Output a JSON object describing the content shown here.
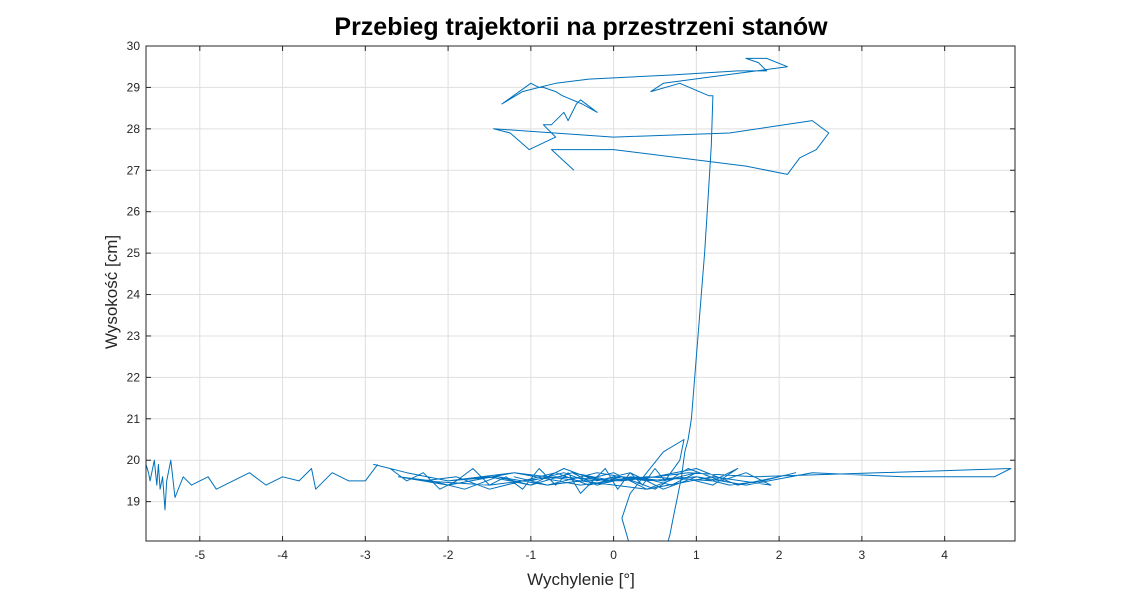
{
  "chart_data": {
    "type": "line",
    "title": "Przebieg trajektorii na przestrzeni stanów",
    "xlabel": "Wychylenie [°]",
    "ylabel": "Wysokość [cm]",
    "xlim": [
      -5.65,
      4.85
    ],
    "ylim": [
      18.05,
      30
    ],
    "grid": true,
    "x_ticks": [
      -5,
      -4,
      -3,
      -2,
      -1,
      0,
      1,
      2,
      3,
      4
    ],
    "x_tick_labels": [
      "-5",
      "-4",
      "-3",
      "-2",
      "-1",
      "0",
      "1",
      "2",
      "3",
      "4"
    ],
    "y_ticks": [
      19,
      20,
      21,
      22,
      23,
      24,
      25,
      26,
      27,
      28,
      29,
      30
    ],
    "y_tick_labels": [
      "19",
      "20",
      "21",
      "22",
      "23",
      "24",
      "25",
      "26",
      "27",
      "28",
      "29",
      "30"
    ],
    "line_color": "#0072BD",
    "series": [
      {
        "x": [
          -0.48,
          -0.75,
          0.0,
          1.6,
          2.1,
          2.25,
          2.45,
          2.6,
          2.4,
          1.4,
          0.0,
          -1.45,
          -1.25,
          -1.02,
          -0.7,
          -0.85,
          -0.75,
          -0.6,
          -0.55,
          -0.45,
          -0.4,
          -0.2,
          -0.38,
          -0.62,
          -0.7,
          -0.85,
          -0.9,
          -1.0,
          -1.35,
          -1.1,
          -0.9,
          -0.7,
          -0.3,
          0.7,
          1.5,
          1.85,
          1.75,
          1.6,
          1.85,
          2.1,
          0.6,
          0.45,
          0.8,
          1.15,
          1.2,
          1.18,
          1.14,
          1.1,
          1.06,
          1.02,
          0.98,
          0.94,
          0.9,
          0.86,
          0.82,
          0.78,
          0.74,
          0.7,
          0.68,
          0.66
        ],
        "y": [
          27.0,
          27.5,
          27.5,
          27.1,
          26.9,
          27.3,
          27.5,
          27.9,
          28.2,
          27.9,
          27.8,
          28.0,
          27.9,
          27.5,
          27.8,
          28.1,
          28.1,
          28.4,
          28.2,
          28.6,
          28.7,
          28.4,
          28.6,
          28.8,
          28.9,
          29.0,
          29.0,
          29.1,
          28.6,
          28.9,
          29.0,
          29.1,
          29.2,
          29.3,
          29.4,
          29.4,
          29.6,
          29.7,
          29.7,
          29.5,
          29.1,
          28.9,
          29.1,
          28.8,
          28.8,
          27.6,
          26.3,
          25.0,
          24.0,
          23.0,
          22.0,
          21.0,
          20.5,
          20.2,
          19.6,
          19.2,
          18.8,
          18.4,
          18.2,
          18.05
        ]
      },
      {
        "x": [
          0.18,
          0.1,
          0.2,
          0.4,
          0.6,
          0.85,
          0.8,
          0.62,
          0.5,
          0.35,
          0.2,
          0.05,
          -0.1,
          -0.25,
          -0.4,
          -0.55,
          -0.7,
          -0.9,
          -1.1,
          -1.3,
          -1.5,
          -1.7,
          -1.9,
          -2.1,
          -2.3,
          -2.5,
          -2.7,
          -2.9,
          -2.5,
          -2.0,
          -1.5,
          -1.0,
          -0.5,
          0.0,
          0.5,
          1.0,
          1.5,
          2.0,
          2.2,
          1.8,
          1.4,
          1.0,
          0.6,
          0.2,
          -0.2,
          -0.6,
          -1.0,
          -1.4,
          -1.8,
          -2.2,
          -2.6,
          -2.0,
          -1.2,
          -0.4,
          0.4,
          1.2,
          1.9,
          1.6,
          1.3,
          0.9,
          0.5,
          0.1,
          -0.3,
          -0.7,
          -1.1,
          -1.5,
          -1.9,
          -2.3,
          -1.5,
          -0.7,
          0.1,
          0.9,
          1.7,
          4.8,
          4.6,
          3.5,
          2.4,
          1.6,
          1.0,
          0.4,
          -0.2,
          -0.8,
          -1.4,
          -2.0,
          -1.2,
          -0.4,
          0.4,
          1.2,
          1.5,
          1.2,
          0.8,
          0.4,
          0.0,
          -0.4,
          -0.8,
          -1.2,
          -1.0,
          -0.6,
          -0.2,
          0.2,
          0.6,
          1.0,
          0.7,
          0.3,
          -0.1,
          -0.5,
          -0.3,
          0.1,
          0.5
        ],
        "y": [
          18.05,
          18.6,
          19.2,
          19.7,
          20.2,
          20.5,
          20.0,
          19.5,
          19.8,
          19.4,
          19.7,
          19.3,
          19.8,
          19.5,
          19.2,
          19.7,
          19.4,
          19.8,
          19.3,
          19.6,
          19.4,
          19.8,
          19.5,
          19.3,
          19.7,
          19.5,
          19.8,
          19.9,
          19.7,
          19.5,
          19.6,
          19.4,
          19.7,
          19.5,
          19.6,
          19.8,
          19.4,
          19.6,
          19.7,
          19.5,
          19.4,
          19.6,
          19.3,
          19.7,
          19.5,
          19.8,
          19.4,
          19.6,
          19.3,
          19.5,
          19.6,
          19.4,
          19.7,
          19.5,
          19.3,
          19.6,
          19.4,
          19.7,
          19.5,
          19.8,
          19.3,
          19.6,
          19.4,
          19.7,
          19.5,
          19.3,
          19.6,
          19.5,
          19.4,
          19.6,
          19.5,
          19.7,
          19.6,
          19.8,
          19.6,
          19.6,
          19.7,
          19.4,
          19.6,
          19.5,
          19.7,
          19.4,
          19.6,
          19.5,
          19.7,
          19.4,
          19.6,
          19.5,
          19.8,
          19.4,
          19.6,
          19.3,
          19.7,
          19.5,
          19.4,
          19.6,
          19.5,
          19.7,
          19.4,
          19.6,
          19.5,
          19.7,
          19.4,
          19.6,
          19.5,
          19.7,
          19.5,
          19.6,
          19.5
        ]
      },
      {
        "x": [
          -2.85,
          -3.0,
          -3.2,
          -3.4,
          -3.6,
          -3.65,
          -3.8,
          -4.0,
          -4.2,
          -4.4,
          -4.6,
          -4.8,
          -4.9,
          -5.1,
          -5.2,
          -5.3,
          -5.35,
          -5.4,
          -5.42,
          -5.45,
          -5.48,
          -5.5,
          -5.52,
          -5.55,
          -5.6,
          -5.62,
          -5.65
        ],
        "y": [
          19.9,
          19.5,
          19.5,
          19.7,
          19.3,
          19.8,
          19.5,
          19.6,
          19.4,
          19.7,
          19.5,
          19.3,
          19.6,
          19.4,
          19.6,
          19.1,
          20.0,
          19.5,
          18.8,
          19.6,
          19.3,
          19.9,
          19.4,
          20.0,
          19.5,
          19.7,
          19.9
        ]
      }
    ]
  }
}
